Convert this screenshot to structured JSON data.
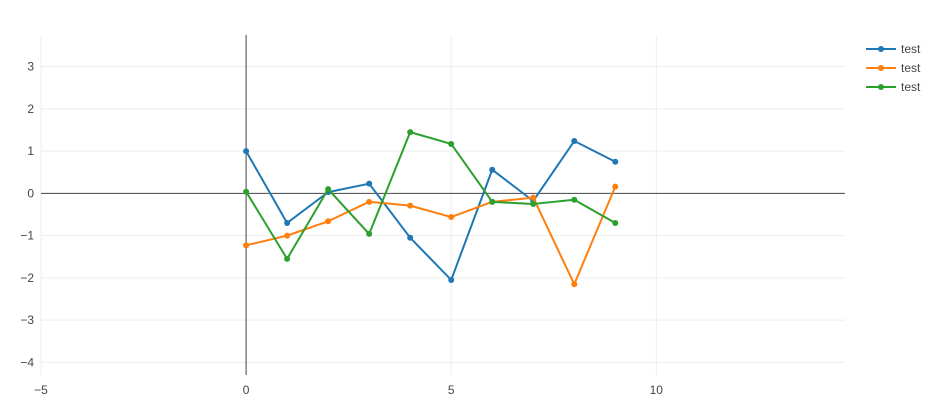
{
  "chart_data": {
    "type": "line",
    "title": "",
    "xlabel": "",
    "ylabel": "",
    "xlim": [
      -5,
      14.6
    ],
    "ylim": [
      -4.3,
      3.75
    ],
    "x_ticks": [
      -5,
      0,
      5,
      10
    ],
    "y_ticks": [
      -4,
      -3,
      -2,
      -1,
      0,
      1,
      2,
      3
    ],
    "x_tick_labels": [
      "−5",
      "0",
      "5",
      "10"
    ],
    "y_tick_labels": [
      "−4",
      "−3",
      "−2",
      "−1",
      "0",
      "1",
      "2",
      "3"
    ],
    "grid": true,
    "zero_lines": true,
    "legend_position": "top-right",
    "x": [
      0,
      1,
      2,
      3,
      4,
      5,
      6,
      7,
      8,
      9
    ],
    "series": [
      {
        "name": "test",
        "color": "#1f77b4",
        "values": [
          1.0,
          -0.7,
          0.03,
          0.23,
          -1.05,
          -2.05,
          0.56,
          -0.18,
          1.24,
          0.75
        ]
      },
      {
        "name": "test",
        "color": "#ff7f0e",
        "values": [
          -1.23,
          -1.0,
          -0.66,
          -0.2,
          -0.29,
          -0.56,
          -0.2,
          -0.1,
          -2.15,
          0.16
        ]
      },
      {
        "name": "test",
        "color": "#2ca02c",
        "values": [
          0.04,
          -1.55,
          0.1,
          -0.96,
          1.45,
          1.17,
          -0.2,
          -0.25,
          -0.15,
          -0.7
        ]
      }
    ]
  }
}
